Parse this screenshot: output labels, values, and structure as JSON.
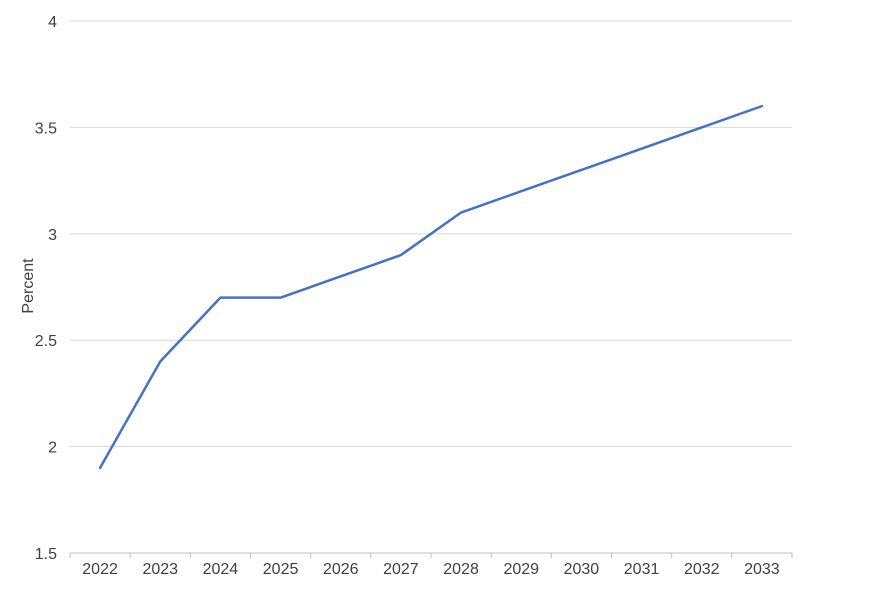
{
  "chart_data": {
    "type": "line",
    "title": "",
    "xlabel": "",
    "ylabel": "Percent",
    "ylim": [
      1.5,
      4
    ],
    "yticks": [
      "1.5",
      "2",
      "2.5",
      "3",
      "3.5",
      "4"
    ],
    "grid": true,
    "legend": "none",
    "categories": [
      "2022",
      "2023",
      "2024",
      "2025",
      "2026",
      "2027",
      "2028",
      "2029",
      "2030",
      "2031",
      "2032",
      "2033"
    ],
    "series": [
      {
        "color": "#4472C4",
        "values": [
          1.9,
          2.4,
          2.7,
          2.7,
          2.8,
          2.9,
          3.1,
          3.2,
          3.3,
          3.4,
          3.5,
          3.6
        ]
      }
    ],
    "colors": {
      "gridline": "#D9D9D9",
      "axis": "#BFBFBF",
      "text": "#404040"
    }
  }
}
